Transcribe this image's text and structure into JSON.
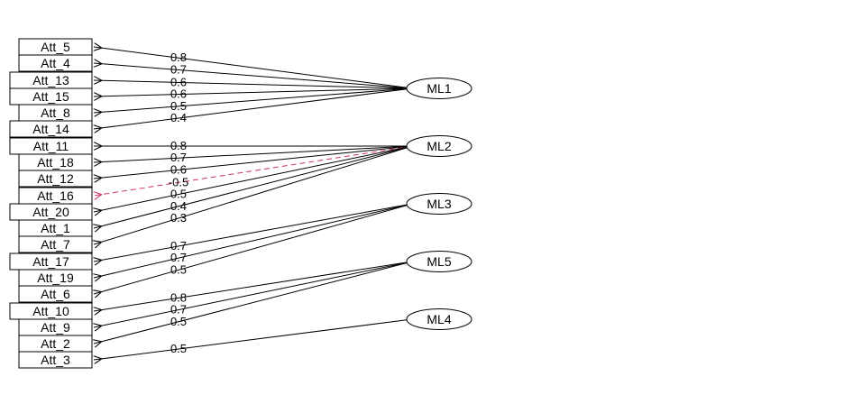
{
  "diagram": {
    "title": "",
    "colors": {
      "edge": "#000000",
      "negative_edge": "#cc3366",
      "box_stroke": "#000000",
      "background": "#ffffff"
    },
    "factors": [
      "ML1",
      "ML2",
      "ML3",
      "ML5",
      "ML4"
    ],
    "items": [
      "Att_5",
      "Att_4",
      "Att_13",
      "Att_15",
      "Att_8",
      "Att_14",
      "Att_11",
      "Att_18",
      "Att_12",
      "Att_16",
      "Att_20",
      "Att_1",
      "Att_7",
      "Att_17",
      "Att_19",
      "Att_6",
      "Att_10",
      "Att_9",
      "Att_2",
      "Att_3"
    ],
    "loadings": [
      {
        "factor": "ML1",
        "item": "Att_5",
        "label": "0.8",
        "negative": false
      },
      {
        "factor": "ML1",
        "item": "Att_4",
        "label": "0.7",
        "negative": false
      },
      {
        "factor": "ML1",
        "item": "Att_13",
        "label": "0.6",
        "negative": false
      },
      {
        "factor": "ML1",
        "item": "Att_15",
        "label": "0.6",
        "negative": false
      },
      {
        "factor": "ML1",
        "item": "Att_8",
        "label": "0.5",
        "negative": false
      },
      {
        "factor": "ML1",
        "item": "Att_14",
        "label": "0.4",
        "negative": false
      },
      {
        "factor": "ML2",
        "item": "Att_11",
        "label": "0.8",
        "negative": false
      },
      {
        "factor": "ML2",
        "item": "Att_18",
        "label": "0.7",
        "negative": false
      },
      {
        "factor": "ML2",
        "item": "Att_12",
        "label": "0.6",
        "negative": false
      },
      {
        "factor": "ML2",
        "item": "Att_16",
        "label": "-0.5",
        "negative": true
      },
      {
        "factor": "ML2",
        "item": "Att_20",
        "label": "0.5",
        "negative": false
      },
      {
        "factor": "ML2",
        "item": "Att_1",
        "label": "0.4",
        "negative": false
      },
      {
        "factor": "ML2",
        "item": "Att_7",
        "label": "0.3",
        "negative": false
      },
      {
        "factor": "ML3",
        "item": "Att_17",
        "label": "0.7",
        "negative": false
      },
      {
        "factor": "ML3",
        "item": "Att_19",
        "label": "0.7",
        "negative": false
      },
      {
        "factor": "ML3",
        "item": "Att_6",
        "label": "0.5",
        "negative": false
      },
      {
        "factor": "ML5",
        "item": "Att_10",
        "label": "0.8",
        "negative": false
      },
      {
        "factor": "ML5",
        "item": "Att_9",
        "label": "0.7",
        "negative": false
      },
      {
        "factor": "ML5",
        "item": "Att_2",
        "label": "0.5",
        "negative": false
      },
      {
        "factor": "ML4",
        "item": "Att_3",
        "label": "0.5",
        "negative": false
      }
    ]
  }
}
